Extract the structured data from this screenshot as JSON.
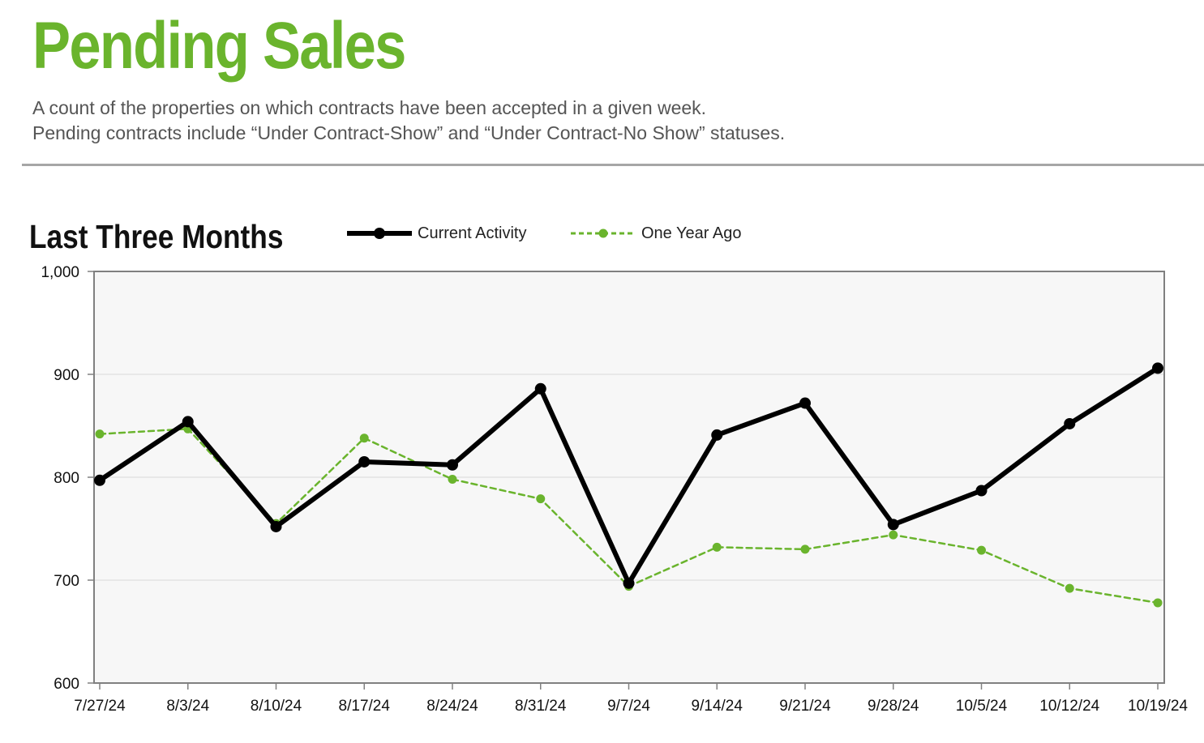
{
  "header": {
    "title": "Pending Sales",
    "description_line1": "A count of the properties on which contracts have been accepted in a given week.",
    "description_line2": "Pending contracts include “Under Contract-Show” and “Under Contract-No Show” statuses."
  },
  "section": {
    "title": "Last Three Months"
  },
  "colors": {
    "title_green": "#6ab42d",
    "current_line": "#000000",
    "year_ago_line": "#6ab42d",
    "plot_background": "#f7f7f7",
    "gridline": "#d9d9d9",
    "axis": "#808080"
  },
  "chart_data": {
    "type": "line",
    "title": "Last Three Months",
    "categories": [
      "7/27/24",
      "8/3/24",
      "8/10/24",
      "8/17/24",
      "8/24/24",
      "8/31/24",
      "9/7/24",
      "9/14/24",
      "9/21/24",
      "9/28/24",
      "10/5/24",
      "10/12/24",
      "10/19/24"
    ],
    "series": [
      {
        "name": "Current Activity",
        "style": "solid",
        "color": "#000000",
        "values": [
          797,
          854,
          752,
          815,
          812,
          886,
          697,
          841,
          872,
          754,
          787,
          852,
          906
        ]
      },
      {
        "name": "One Year Ago",
        "style": "dashed",
        "color": "#6ab42d",
        "values": [
          842,
          847,
          755,
          838,
          798,
          779,
          694,
          732,
          730,
          744,
          729,
          692,
          678
        ]
      }
    ],
    "ylim": [
      600,
      1000
    ],
    "yticks": [
      600,
      700,
      800,
      900,
      1000
    ],
    "ytick_labels": [
      "600",
      "700",
      "800",
      "900",
      "1,000"
    ],
    "xlabel": "",
    "ylabel": "",
    "grid": true,
    "legend_position": "top"
  }
}
